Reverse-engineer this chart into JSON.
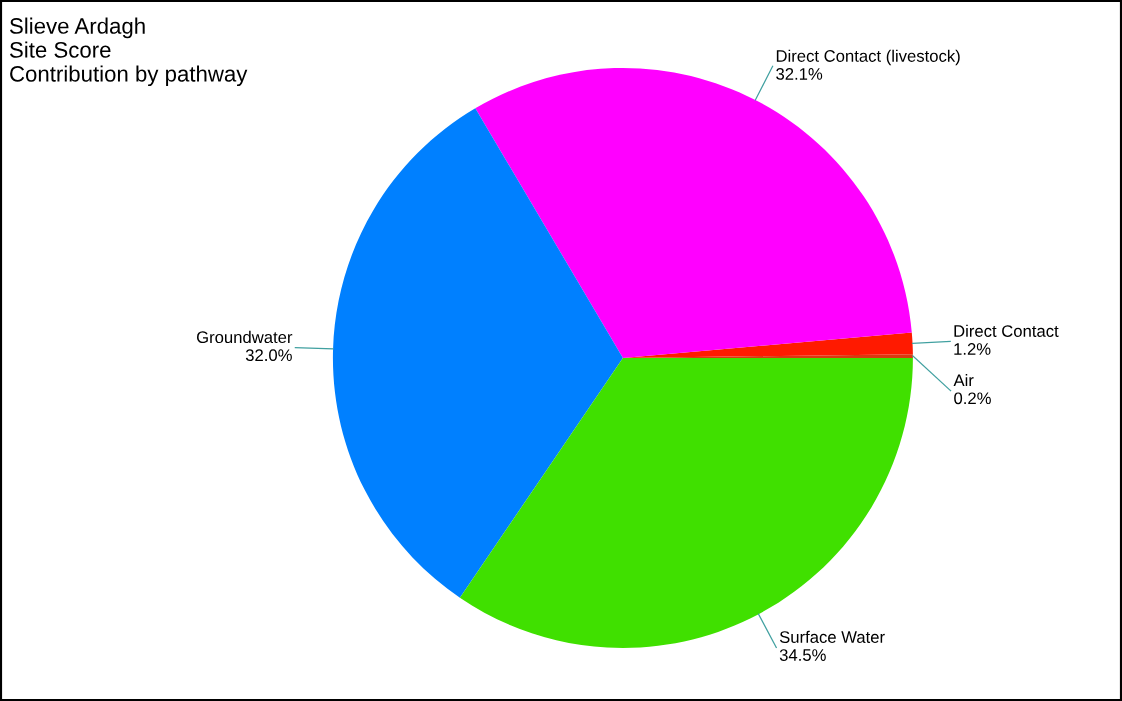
{
  "chart_data": {
    "type": "pie",
    "title": "Slieve Ardagh\nSite Score\nContribution by pathway",
    "categories": [
      "Air",
      "Direct Contact",
      "Direct Contact (livestock)",
      "Groundwater",
      "Surface Water"
    ],
    "values": [
      0.2,
      1.2,
      32.1,
      32.0,
      34.5
    ],
    "colors": [
      "#d83a10",
      "#ff1a00",
      "#ff00ff",
      "#0080ff",
      "#40e000"
    ],
    "value_labels": [
      "0.2%",
      "1.2%",
      "32.1%",
      "32.0%",
      "34.5%"
    ],
    "legend": false
  }
}
